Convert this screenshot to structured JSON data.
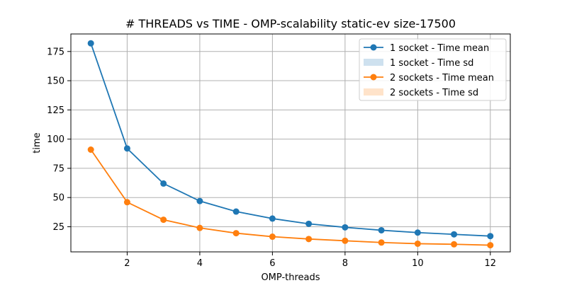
{
  "chart_data": {
    "type": "line",
    "title": "# THREADS vs TIME - OMP-scalability static-ev size-17500",
    "xlabel": "OMP-threads",
    "ylabel": "time",
    "x": [
      1,
      2,
      3,
      4,
      5,
      6,
      7,
      8,
      9,
      10,
      11,
      12
    ],
    "xlim": [
      0.45,
      12.55
    ],
    "ylim": [
      3.5,
      190
    ],
    "xticks": [
      2,
      4,
      6,
      8,
      10,
      12
    ],
    "yticks": [
      25,
      50,
      75,
      100,
      125,
      150,
      175
    ],
    "grid": true,
    "legend_position": "top-right",
    "series": [
      {
        "name": "1 socket - Time mean",
        "color": "#1f77b4",
        "values": [
          182,
          92,
          62,
          47,
          38,
          32,
          27.5,
          24.5,
          22,
          20,
          18.5,
          17
        ]
      },
      {
        "name": "2 sockets - Time mean",
        "color": "#ff7f0e",
        "values": [
          91,
          46,
          31,
          24,
          19.5,
          16.5,
          14.5,
          13,
          11.5,
          10.5,
          10,
          9.2
        ]
      }
    ],
    "legend": [
      {
        "label": "1 socket - Time mean",
        "kind": "line",
        "color": "#1f77b4"
      },
      {
        "label": "1 socket - Time sd",
        "kind": "patch",
        "color": "#1f77b4"
      },
      {
        "label": "2 sockets - Time mean",
        "kind": "line",
        "color": "#ff7f0e"
      },
      {
        "label": "2 sockets - Time sd",
        "kind": "patch",
        "color": "#ff7f0e"
      }
    ]
  }
}
